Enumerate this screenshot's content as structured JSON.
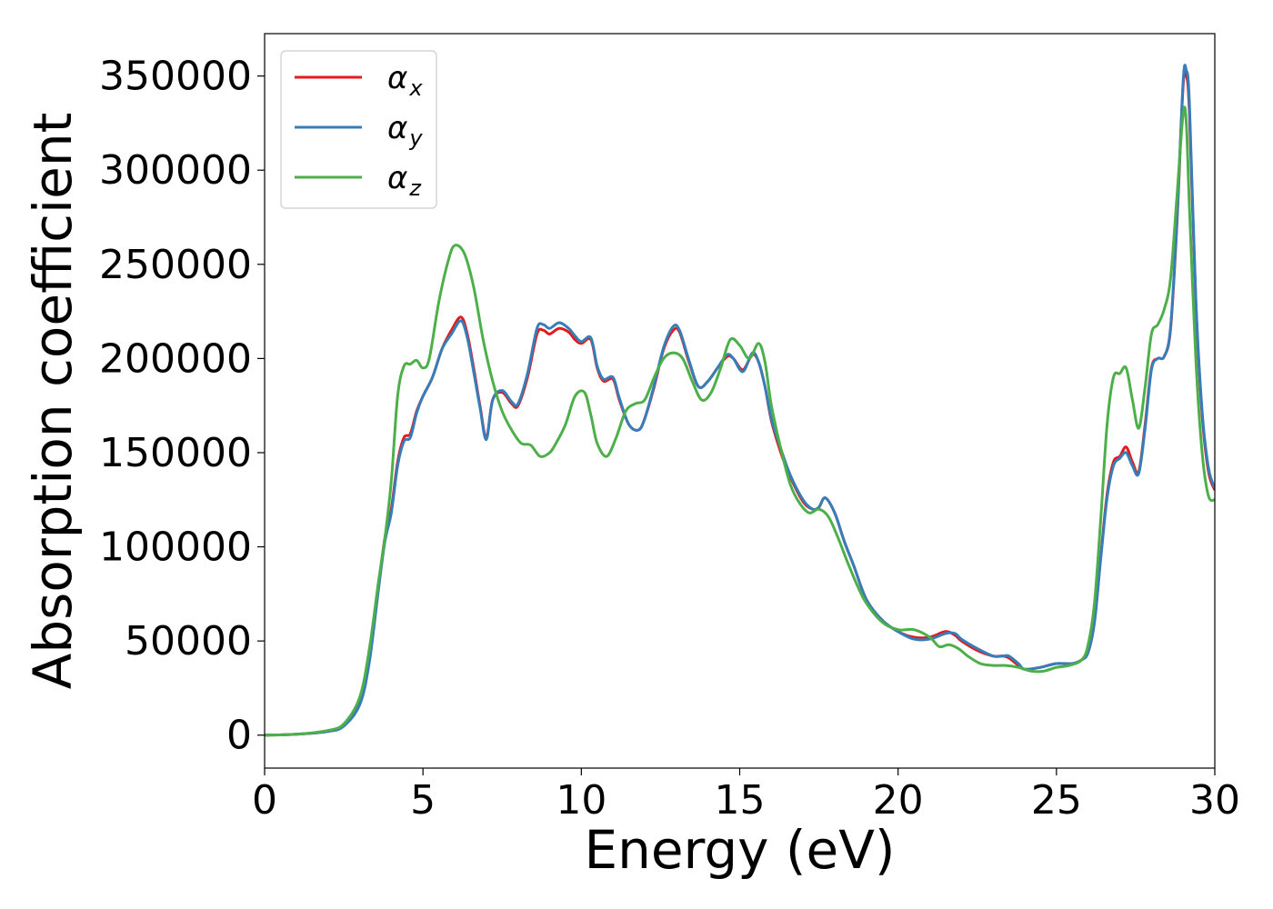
{
  "chart_data": {
    "type": "line",
    "title": "",
    "xlabel": "Energy (eV)",
    "ylabel": "Absorption coefficient",
    "xlim": [
      0,
      30
    ],
    "ylim": [
      -17500,
      372500
    ],
    "xticks": [
      0,
      5,
      10,
      15,
      20,
      25,
      30
    ],
    "yticks": [
      0,
      50000,
      100000,
      150000,
      200000,
      250000,
      300000,
      350000
    ],
    "grid": false,
    "legend_position": "top-left",
    "series": [
      {
        "name": "αx",
        "symbol": "α",
        "subscript": "x",
        "color": "#e41a1c",
        "x": [
          0,
          1,
          2,
          2.5,
          3,
          3.3,
          3.6,
          3.8,
          4.0,
          4.2,
          4.4,
          4.6,
          4.8,
          5.0,
          5.3,
          5.6,
          5.9,
          6.2,
          6.4,
          6.6,
          6.8,
          7.0,
          7.2,
          7.5,
          7.8,
          8.0,
          8.3,
          8.6,
          8.8,
          9.0,
          9.3,
          9.6,
          9.8,
          10.0,
          10.3,
          10.5,
          10.7,
          11.0,
          11.2,
          11.5,
          11.8,
          12.0,
          12.3,
          12.6,
          12.9,
          13.1,
          13.4,
          13.7,
          14.0,
          14.3,
          14.6,
          14.8,
          15.1,
          15.4,
          15.6,
          15.8,
          16.0,
          16.3,
          16.6,
          17.0,
          17.3,
          17.5,
          17.7,
          18.0,
          18.3,
          18.6,
          19.0,
          19.5,
          20.0,
          20.5,
          21.0,
          21.5,
          21.8,
          22.0,
          22.5,
          23.0,
          23.3,
          23.5,
          23.8,
          24.0,
          24.5,
          25.0,
          25.5,
          25.8,
          26.0,
          26.2,
          26.4,
          26.6,
          26.8,
          27.0,
          27.2,
          27.4,
          27.6,
          27.8,
          28.0,
          28.2,
          28.4,
          28.6,
          28.8,
          29.0,
          29.1,
          29.2,
          29.4,
          29.6,
          29.8,
          30.0
        ],
        "y": [
          0,
          500,
          2000,
          5000,
          17000,
          40000,
          80000,
          105000,
          120000,
          145000,
          158000,
          160000,
          172000,
          180000,
          190000,
          205000,
          215000,
          222000,
          213000,
          195000,
          175000,
          158000,
          178000,
          182000,
          176000,
          175000,
          190000,
          213000,
          215000,
          213000,
          216000,
          214000,
          210000,
          208000,
          210000,
          195000,
          188000,
          189000,
          178000,
          165000,
          162000,
          168000,
          185000,
          205000,
          215000,
          214000,
          198000,
          185000,
          188000,
          195000,
          201000,
          200000,
          194000,
          202000,
          198000,
          185000,
          167000,
          150000,
          137000,
          124000,
          120000,
          121000,
          126000,
          118000,
          103000,
          90000,
          72000,
          61000,
          55000,
          52000,
          52000,
          55000,
          53000,
          50000,
          45000,
          42000,
          42000,
          41000,
          37000,
          35000,
          36000,
          38000,
          38000,
          40000,
          44000,
          60000,
          95000,
          128000,
          145000,
          148000,
          153000,
          145000,
          140000,
          165000,
          195000,
          200000,
          201000,
          215000,
          270000,
          345000,
          350000,
          330000,
          230000,
          170000,
          140000,
          130000
        ]
      },
      {
        "name": "αy",
        "symbol": "α",
        "subscript": "y",
        "color": "#377eb8",
        "x": [
          0,
          1,
          2,
          2.5,
          3,
          3.3,
          3.6,
          3.8,
          4.0,
          4.2,
          4.4,
          4.6,
          4.8,
          5.0,
          5.3,
          5.6,
          5.9,
          6.2,
          6.4,
          6.6,
          6.8,
          7.0,
          7.2,
          7.5,
          7.8,
          8.0,
          8.3,
          8.6,
          8.8,
          9.0,
          9.3,
          9.6,
          9.8,
          10.0,
          10.3,
          10.5,
          10.7,
          11.0,
          11.2,
          11.5,
          11.8,
          12.0,
          12.3,
          12.6,
          12.9,
          13.1,
          13.4,
          13.7,
          14.0,
          14.3,
          14.6,
          14.8,
          15.1,
          15.4,
          15.6,
          15.8,
          16.0,
          16.3,
          16.6,
          17.0,
          17.3,
          17.5,
          17.7,
          18.0,
          18.3,
          18.6,
          19.0,
          19.5,
          20.0,
          20.5,
          21.0,
          21.5,
          21.8,
          22.0,
          22.5,
          23.0,
          23.3,
          23.5,
          23.8,
          24.0,
          24.5,
          25.0,
          25.5,
          25.8,
          26.0,
          26.2,
          26.4,
          26.6,
          26.8,
          27.0,
          27.2,
          27.4,
          27.6,
          27.8,
          28.0,
          28.2,
          28.4,
          28.6,
          28.8,
          29.0,
          29.1,
          29.2,
          29.4,
          29.6,
          29.8,
          30.0
        ],
        "y": [
          0,
          500,
          2000,
          4800,
          16000,
          38000,
          78000,
          103000,
          118000,
          143000,
          156000,
          158000,
          171000,
          180000,
          190000,
          205000,
          213000,
          220000,
          211000,
          193000,
          174000,
          157000,
          178000,
          183000,
          177000,
          176000,
          192000,
          216000,
          218000,
          216000,
          219000,
          216000,
          212000,
          209000,
          211000,
          196000,
          189000,
          190000,
          179000,
          165000,
          162000,
          168000,
          186000,
          206000,
          217000,
          215000,
          199000,
          185000,
          188000,
          195000,
          202000,
          200000,
          193000,
          203000,
          198000,
          185000,
          168000,
          152000,
          138000,
          125000,
          120000,
          121000,
          126000,
          118000,
          103000,
          90000,
          72000,
          61000,
          55000,
          51000,
          51000,
          54000,
          54000,
          51000,
          46000,
          42000,
          42000,
          42000,
          38000,
          35000,
          36000,
          38000,
          38000,
          40000,
          44000,
          60000,
          94000,
          126000,
          143000,
          147000,
          150000,
          143000,
          139000,
          163000,
          194000,
          200000,
          201000,
          216000,
          272000,
          347000,
          353000,
          335000,
          232000,
          172000,
          142000,
          131000
        ]
      },
      {
        "name": "αz",
        "symbol": "α",
        "subscript": "z",
        "color": "#4daf4a",
        "x": [
          0,
          1,
          2,
          2.5,
          3,
          3.3,
          3.6,
          3.8,
          4.0,
          4.2,
          4.4,
          4.6,
          4.8,
          5.0,
          5.2,
          5.5,
          5.8,
          6.0,
          6.3,
          6.6,
          6.9,
          7.2,
          7.5,
          7.8,
          8.1,
          8.4,
          8.7,
          9.0,
          9.2,
          9.5,
          9.8,
          10.1,
          10.3,
          10.5,
          10.8,
          11.1,
          11.4,
          11.7,
          12.0,
          12.3,
          12.6,
          12.9,
          13.2,
          13.5,
          13.8,
          14.1,
          14.4,
          14.7,
          15.0,
          15.3,
          15.6,
          15.8,
          16.0,
          16.3,
          16.6,
          16.9,
          17.2,
          17.5,
          17.8,
          18.1,
          18.4,
          18.7,
          19.0,
          19.5,
          20.0,
          20.5,
          21.0,
          21.3,
          21.6,
          21.9,
          22.2,
          22.6,
          23.0,
          23.4,
          23.8,
          24.2,
          24.6,
          25.0,
          25.4,
          25.8,
          26.0,
          26.2,
          26.4,
          26.6,
          26.8,
          27.0,
          27.2,
          27.4,
          27.6,
          27.8,
          28.0,
          28.2,
          28.4,
          28.6,
          28.8,
          29.0,
          29.1,
          29.2,
          29.4,
          29.6,
          29.8,
          30.0
        ],
        "y": [
          0,
          500,
          2500,
          6000,
          20000,
          45000,
          82000,
          105000,
          135000,
          180000,
          196000,
          197000,
          199000,
          195000,
          200000,
          230000,
          252000,
          260000,
          256000,
          238000,
          210000,
          188000,
          172000,
          162000,
          155000,
          154000,
          148000,
          150000,
          155000,
          165000,
          180000,
          182000,
          170000,
          155000,
          148000,
          158000,
          172000,
          176000,
          178000,
          190000,
          200000,
          203000,
          200000,
          188000,
          178000,
          182000,
          195000,
          210000,
          207000,
          200000,
          208000,
          198000,
          175000,
          152000,
          133000,
          123000,
          118000,
          120000,
          116000,
          105000,
          92000,
          80000,
          70000,
          60000,
          56000,
          56000,
          52000,
          47000,
          48000,
          46000,
          42000,
          38000,
          37000,
          37000,
          36000,
          34000,
          34000,
          36000,
          37000,
          40000,
          48000,
          70000,
          115000,
          165000,
          190000,
          192000,
          195000,
          178000,
          163000,
          185000,
          213000,
          218000,
          226000,
          242000,
          285000,
          330000,
          325000,
          280000,
          200000,
          150000,
          127000,
          125000
        ]
      }
    ]
  }
}
